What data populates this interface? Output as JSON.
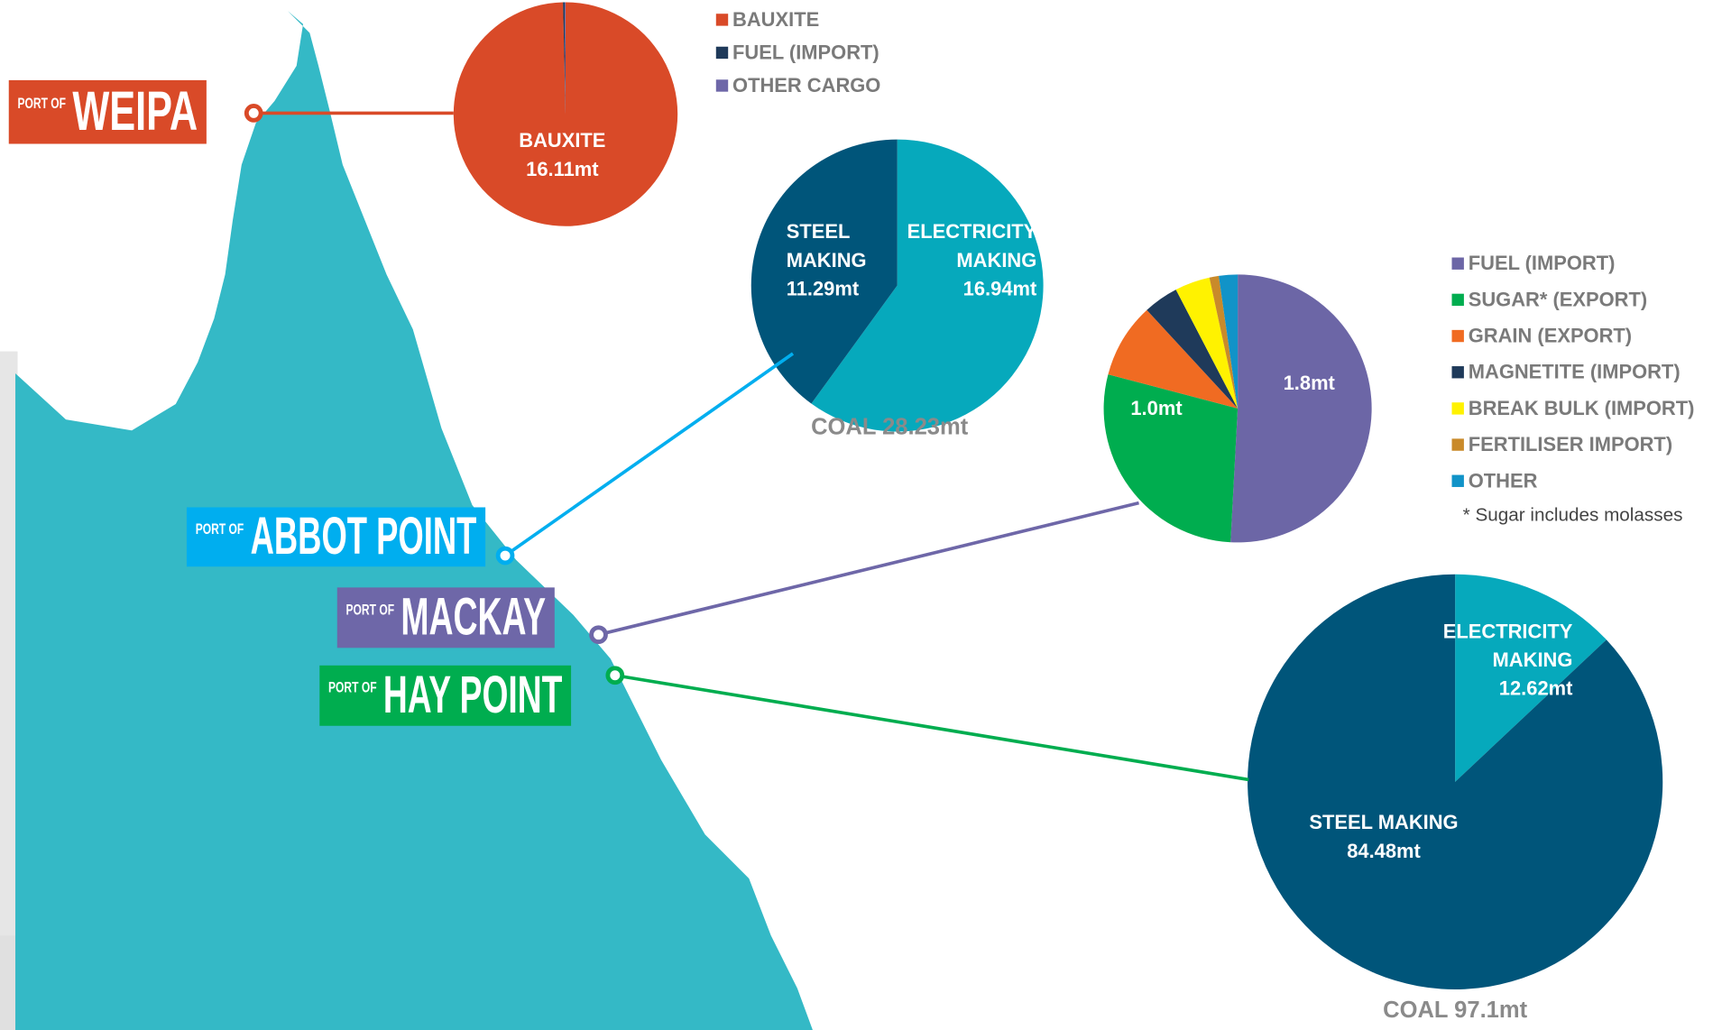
{
  "chart_data": [
    {
      "type": "pie",
      "port_prefix": "PORT OF",
      "port_name": "WEIPA",
      "port_color": "#d94a28",
      "categories": [
        "BAUXITE",
        "FUEL (IMPORT)",
        "OTHER CARGO"
      ],
      "values": [
        16.11,
        0.04,
        0.02
      ],
      "value_labels": [
        "16.11mt",
        null,
        null
      ],
      "colors": [
        "#d94a28",
        "#1f3a5a",
        "#6e67a8"
      ],
      "legend": true
    },
    {
      "type": "pie",
      "port_prefix": "PORT OF",
      "port_name": "ABBOT POINT",
      "port_color": "#00aeef",
      "title": "COAL 28.23mt",
      "categories": [
        "ELECTRICITY MAKING",
        "STEEL MAKING"
      ],
      "values": [
        16.94,
        11.29
      ],
      "value_labels": [
        "16.94mt",
        "11.29mt"
      ],
      "colors": [
        "#06a9bc",
        "#00557a"
      ],
      "legend": false
    },
    {
      "type": "pie",
      "port_prefix": "PORT OF",
      "port_name": "MACKAY",
      "port_color": "#6e67a8",
      "categories": [
        "FUEL (IMPORT)",
        "SUGAR* (EXPORT)",
        "GRAIN (EXPORT)",
        "MAGNETITE (IMPORT)",
        "BREAK BULK (IMPORT)",
        "FERTILISER IMPORT)",
        "OTHER"
      ],
      "values": [
        1.8,
        1.0,
        0.32,
        0.15,
        0.15,
        0.04,
        0.08
      ],
      "value_labels": [
        "1.8mt",
        "1.0mt",
        null,
        null,
        null,
        null,
        null
      ],
      "colors": [
        "#6c66a6",
        "#00ad4f",
        "#f06b22",
        "#1f3a5a",
        "#fff200",
        "#c98a2a",
        "#1193c8"
      ],
      "legend": true,
      "footnote": "* Sugar includes molasses"
    },
    {
      "type": "pie",
      "port_prefix": "PORT OF",
      "port_name": "HAY POINT",
      "port_color": "#00ad4f",
      "title": "COAL 97.1mt",
      "categories": [
        "ELECTRICITY MAKING",
        "STEEL MAKING"
      ],
      "values": [
        12.62,
        84.48
      ],
      "value_labels": [
        "12.62mt",
        "84.48mt"
      ],
      "colors": [
        "#06a9bc",
        "#00557a"
      ],
      "legend": false
    }
  ]
}
